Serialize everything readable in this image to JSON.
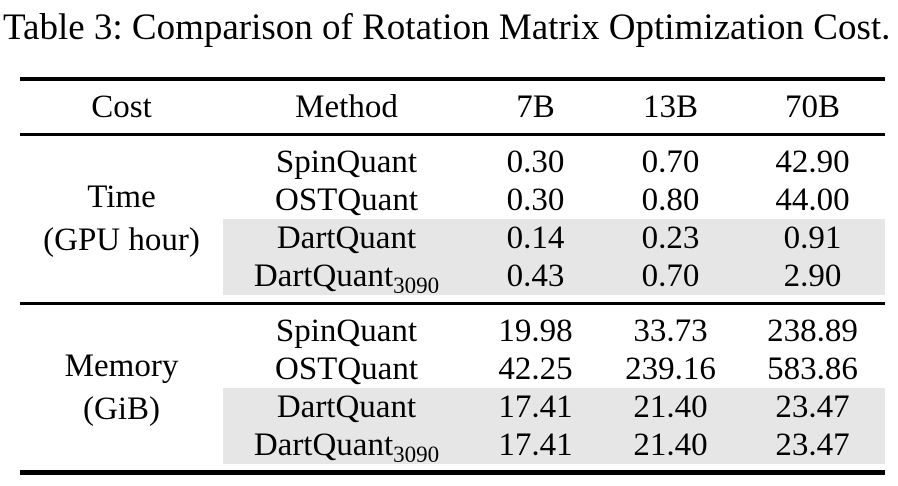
{
  "title": "Table 3: Comparison of Rotation Matrix Optimization Cost.",
  "table": {
    "columns": [
      "Cost",
      "Method",
      "7B",
      "13B",
      "70B"
    ],
    "sections": [
      {
        "cost_label": [
          "Time",
          "(GPU hour)"
        ],
        "rows": [
          {
            "method": "SpinQuant",
            "method_sub": "",
            "values": [
              "0.30",
              "0.70",
              "42.90"
            ],
            "highlighted": false
          },
          {
            "method": "OSTQuant",
            "method_sub": "",
            "values": [
              "0.30",
              "0.80",
              "44.00"
            ],
            "highlighted": false
          },
          {
            "method": "DartQuant",
            "method_sub": "",
            "values": [
              "0.14",
              "0.23",
              "0.91"
            ],
            "highlighted": true
          },
          {
            "method": "DartQuant",
            "method_sub": "3090",
            "values": [
              "0.43",
              "0.70",
              "2.90"
            ],
            "highlighted": true
          }
        ]
      },
      {
        "cost_label": [
          "Memory",
          "(GiB)"
        ],
        "rows": [
          {
            "method": "SpinQuant",
            "method_sub": "",
            "values": [
              "19.98",
              "33.73",
              "238.89"
            ],
            "highlighted": false
          },
          {
            "method": "OSTQuant",
            "method_sub": "",
            "values": [
              "42.25",
              "239.16",
              "583.86"
            ],
            "highlighted": false
          },
          {
            "method": "DartQuant",
            "method_sub": "",
            "values": [
              "17.41",
              "21.40",
              "23.47"
            ],
            "highlighted": true
          },
          {
            "method": "DartQuant",
            "method_sub": "3090",
            "values": [
              "17.41",
              "21.40",
              "23.47"
            ],
            "highlighted": true
          }
        ]
      }
    ]
  },
  "colors": {
    "highlight": "#e6e6e6",
    "text": "#000000",
    "rule": "#000000",
    "background": "#ffffff"
  }
}
